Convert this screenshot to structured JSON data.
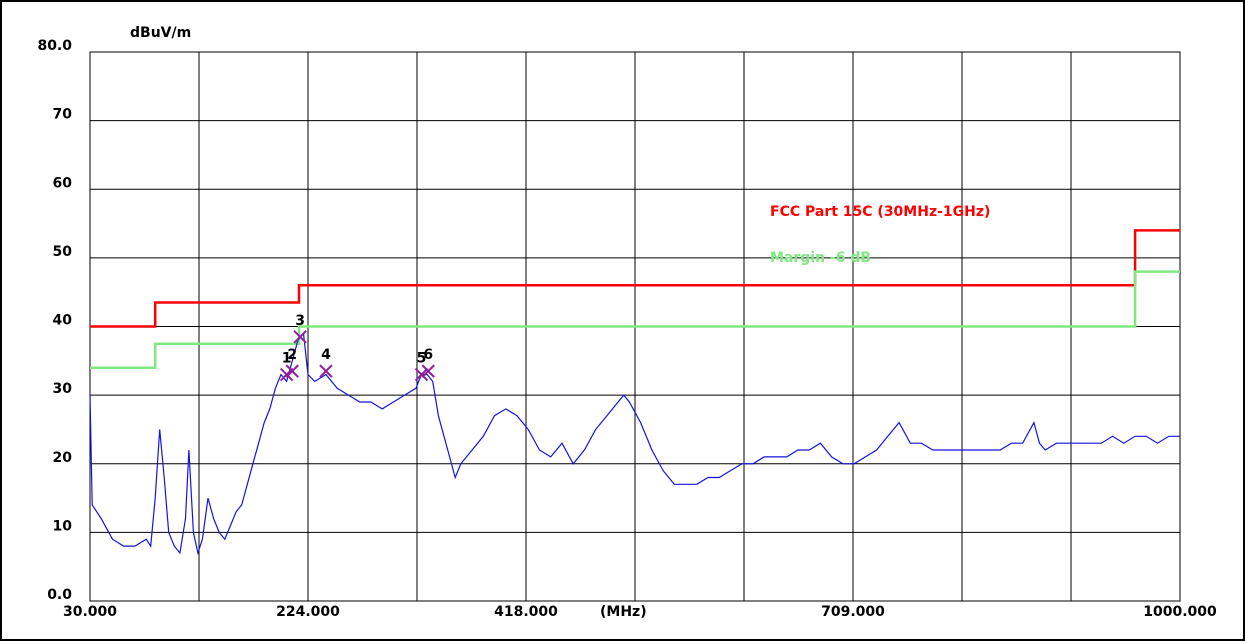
{
  "chart_data": {
    "type": "line",
    "y_label": "dBuV/m",
    "x_label": "(MHz)",
    "xlim": [
      30,
      1000
    ],
    "ylim": [
      0,
      80
    ],
    "xticks": [
      {
        "value": 30,
        "label": "30.000"
      },
      {
        "value": 224,
        "label": "224.000"
      },
      {
        "value": 418,
        "label": "418.000"
      },
      {
        "value": 709,
        "label": "709.000"
      },
      {
        "value": 1000,
        "label": "1000.000"
      }
    ],
    "xgrid": [
      30,
      127,
      224,
      321,
      418,
      515,
      612,
      709,
      806,
      903,
      1000
    ],
    "yticks": [
      {
        "value": 0,
        "label": "0.0"
      },
      10,
      20,
      30,
      40,
      50,
      60,
      70,
      {
        "value": 80,
        "label": "80.0"
      }
    ],
    "grid": true,
    "series": [
      {
        "name": "FCC Part 15C (30MHz-1GHz)",
        "color": "#ff0000",
        "x": [
          30,
          88,
          88,
          216,
          216,
          960,
          960,
          1000
        ],
        "values": [
          40,
          40,
          43.5,
          43.5,
          46,
          46,
          54,
          54
        ]
      },
      {
        "name": "Margin -6 dB",
        "color": "#80e880",
        "x": [
          30,
          88,
          88,
          216,
          216,
          960,
          960,
          1000
        ],
        "values": [
          34,
          34,
          37.5,
          37.5,
          40,
          40,
          48,
          48
        ]
      },
      {
        "color": "#1414e0",
        "x": [
          30,
          32,
          40,
          50,
          60,
          70,
          80,
          84,
          88,
          92,
          96,
          100,
          105,
          110,
          115,
          118,
          122,
          126,
          130,
          135,
          140,
          145,
          150,
          155,
          160,
          165,
          170,
          175,
          180,
          185,
          190,
          195,
          200,
          205,
          210,
          215,
          220,
          224,
          230,
          240,
          250,
          260,
          270,
          280,
          290,
          300,
          310,
          320,
          325,
          330,
          335,
          340,
          345,
          350,
          355,
          360,
          370,
          380,
          390,
          400,
          410,
          420,
          430,
          440,
          450,
          460,
          470,
          480,
          490,
          500,
          505,
          510,
          520,
          530,
          540,
          550,
          560,
          570,
          580,
          590,
          600,
          610,
          620,
          630,
          640,
          650,
          660,
          670,
          680,
          690,
          700,
          710,
          720,
          730,
          740,
          750,
          760,
          770,
          780,
          790,
          800,
          810,
          820,
          830,
          840,
          850,
          860,
          870,
          875,
          880,
          890,
          900,
          910,
          920,
          930,
          940,
          950,
          960,
          970,
          980,
          990,
          1000
        ],
        "values": [
          30,
          14,
          12,
          9,
          8,
          8,
          9,
          8,
          15,
          25,
          18,
          10,
          8,
          7,
          12,
          22,
          10,
          7,
          9,
          15,
          12,
          10,
          9,
          11,
          13,
          14,
          17,
          20,
          23,
          26,
          28,
          31,
          33,
          32,
          35,
          38,
          39,
          33,
          32,
          33,
          31,
          30,
          29,
          29,
          28,
          29,
          30,
          31,
          33,
          33,
          32,
          27,
          24,
          21,
          18,
          20,
          22,
          24,
          27,
          28,
          27,
          25,
          22,
          21,
          23,
          20,
          22,
          25,
          27,
          29,
          30,
          29,
          26,
          22,
          19,
          17,
          17,
          17,
          18,
          18,
          19,
          20,
          20,
          21,
          21,
          21,
          22,
          22,
          23,
          21,
          20,
          20,
          21,
          22,
          24,
          26,
          23,
          23,
          22,
          22,
          22,
          22,
          22,
          22,
          22,
          23,
          23,
          26,
          23,
          22,
          23,
          23,
          23,
          23,
          23,
          24,
          23,
          24,
          24,
          23,
          24,
          24
        ]
      }
    ],
    "markers": {
      "color": "#9020a0",
      "labels": [
        "1",
        "2",
        "3",
        "4",
        "5",
        "6"
      ],
      "x": [
        205,
        210,
        217,
        240,
        325,
        331
      ],
      "values": [
        33,
        33.5,
        38.5,
        33.5,
        33,
        33.5
      ]
    }
  }
}
